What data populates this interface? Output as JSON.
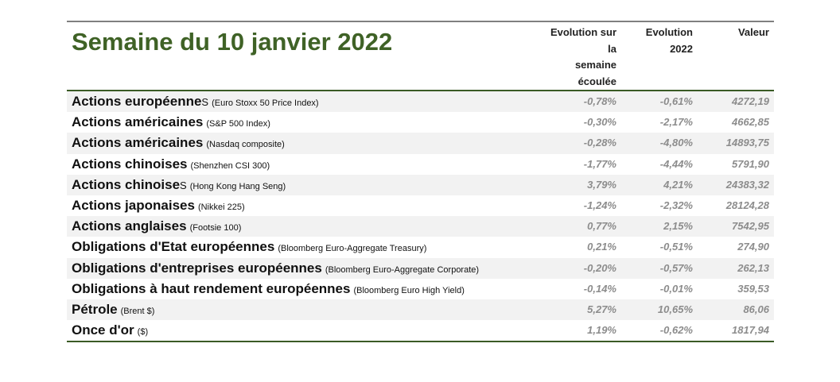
{
  "title": "Semaine du 10 janvier 2022",
  "headers": {
    "week": [
      "Evolution sur",
      "la",
      "semaine",
      "écoulée"
    ],
    "year": [
      "Evolution",
      "2022"
    ],
    "value": [
      "Valeur"
    ]
  },
  "rows": [
    {
      "name": "Actions européenne",
      "name_tail": "s",
      "source": "(Euro Stoxx 50 Price Index)",
      "week": "-0,78%",
      "year": "-0,61%",
      "value": "4272,19"
    },
    {
      "name": "Actions américaines",
      "name_tail": "",
      "source": "(S&P 500 Index)",
      "week": "-0,30%",
      "year": "-2,17%",
      "value": "4662,85"
    },
    {
      "name": "Actions américaines",
      "name_tail": "",
      "source": "(Nasdaq composite)",
      "week": "-0,28%",
      "year": "-4,80%",
      "value": "14893,75"
    },
    {
      "name": "Actions chinoises",
      "name_tail": "",
      "source": "(Shenzhen CSI 300)",
      "week": "-1,77%",
      "year": "-4,44%",
      "value": "5791,90"
    },
    {
      "name": "Actions chinoise",
      "name_tail": "s",
      "source": "(Hong Kong Hang Seng)",
      "week": "3,79%",
      "year": "4,21%",
      "value": "24383,32"
    },
    {
      "name": "Actions japonaises",
      "name_tail": "",
      "source": "(Nikkei 225)",
      "week": "-1,24%",
      "year": "-2,32%",
      "value": "28124,28"
    },
    {
      "name": "Actions anglaises",
      "name_tail": "",
      "source": "(Footsie 100)",
      "week": "0,77%",
      "year": "2,15%",
      "value": "7542,95"
    },
    {
      "name": "Obligations d'Etat européennes",
      "name_tail": "",
      "source": "(Bloomberg Euro-Aggregate Treasury)",
      "week": "0,21%",
      "year": "-0,51%",
      "value": "274,90"
    },
    {
      "name": "Obligations d'entreprises européennes",
      "name_tail": "",
      "source": "(Bloomberg Euro-Aggregate Corporate)",
      "week": "-0,20%",
      "year": "-0,57%",
      "value": "262,13"
    },
    {
      "name": "Obligations à haut rendement européennes",
      "name_tail": "",
      "source": "(Bloomberg Euro High Yield)",
      "week": "-0,14%",
      "year": "-0,01%",
      "value": "359,53"
    },
    {
      "name": "Pétrole",
      "name_tail": "",
      "source": "(Brent $)",
      "week": "5,27%",
      "year": "10,65%",
      "value": "86,06"
    },
    {
      "name": "Once d'or",
      "name_tail": "",
      "source": "($)",
      "week": "1,19%",
      "year": "-0,62%",
      "value": "1817,94"
    }
  ],
  "colors": {
    "title": "#3f6226",
    "rule": "#3a5a25",
    "shade": "#f2f2f2",
    "numbers": "#8c8c8c"
  }
}
